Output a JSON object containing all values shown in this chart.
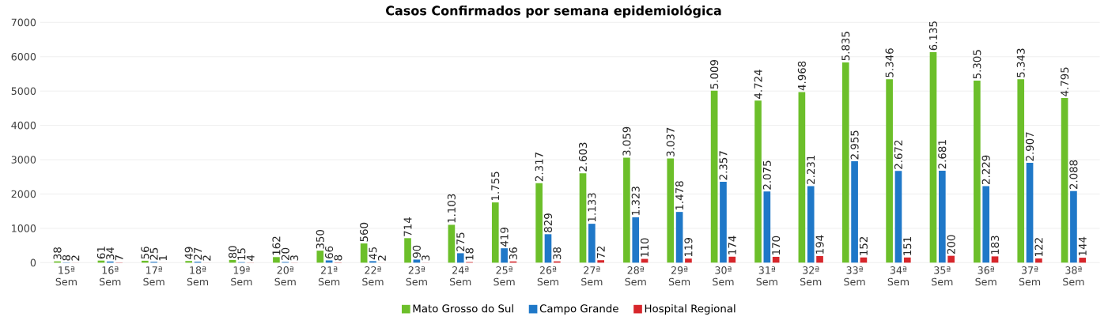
{
  "chart_data": {
    "type": "bar",
    "title": "Casos Confirmados por semana epidemiológica",
    "categories": [
      "15ª Sem",
      "16ª Sem",
      "17ª Sem",
      "18ª Sem",
      "19ª Sem",
      "20ª Sem",
      "21ª Sem",
      "22ª Sem",
      "23ª Sem",
      "24ª Sem",
      "25ª Sem",
      "26ª Sem",
      "27ª Sem",
      "28ª Sem",
      "29ª Sem",
      "30ª Sem",
      "31ª Sem",
      "32ª Sem",
      "33ª Sem",
      "34ª Sem",
      "35ª Sem",
      "36ª Sem",
      "37ª Sem",
      "38ª Sem"
    ],
    "series": [
      {
        "name": "Mato Grosso do Sul",
        "color": "#6cbf2a",
        "values": [
          38,
          61,
          56,
          49,
          80,
          162,
          350,
          560,
          714,
          1103,
          1755,
          2317,
          2603,
          3059,
          3037,
          5009,
          4724,
          4968,
          5835,
          5346,
          6135,
          5305,
          5343,
          4795
        ],
        "value_labels": [
          "38",
          "61",
          "56",
          "49",
          "80",
          "162",
          "350",
          "560",
          "714",
          "1.103",
          "1.755",
          "2.317",
          "2.603",
          "3.059",
          "3.037",
          "5.009",
          "4.724",
          "4.968",
          "5.835",
          "5.346",
          "6.135",
          "5.305",
          "5.343",
          "4.795"
        ]
      },
      {
        "name": "Campo Grande",
        "color": "#1f78c8",
        "values": [
          8,
          34,
          25,
          27,
          15,
          20,
          66,
          45,
          90,
          275,
          419,
          829,
          1133,
          1323,
          1478,
          2357,
          2075,
          2231,
          2955,
          2672,
          2681,
          2229,
          2907,
          2088
        ],
        "value_labels": [
          "8",
          "34",
          "25",
          "27",
          "15",
          "20",
          "66",
          "45",
          "90",
          "275",
          "419",
          "829",
          "1.133",
          "1.323",
          "1.478",
          "2.357",
          "2.075",
          "2.231",
          "2.955",
          "2.672",
          "2.681",
          "2.229",
          "2.907",
          "2.088"
        ]
      },
      {
        "name": "Hospital Regional",
        "color": "#d7262b",
        "values": [
          2,
          7,
          1,
          2,
          4,
          3,
          8,
          2,
          3,
          18,
          36,
          38,
          72,
          110,
          119,
          174,
          170,
          194,
          152,
          151,
          200,
          183,
          122,
          144
        ],
        "value_labels": [
          "2",
          "7",
          "1",
          "2",
          "4",
          "3",
          "8",
          "2",
          "3",
          "18",
          "36",
          "38",
          "72",
          "110",
          "119",
          "174",
          "170",
          "194",
          "152",
          "151",
          "200",
          "183",
          "122",
          "144"
        ]
      }
    ],
    "ylim": [
      0,
      7000
    ],
    "yticks": [
      0,
      1000,
      2000,
      3000,
      4000,
      5000,
      6000,
      7000
    ],
    "grid": "y",
    "legend": "bottom"
  }
}
